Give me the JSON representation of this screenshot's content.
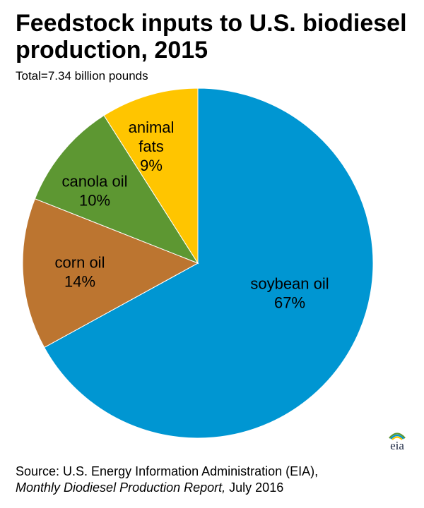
{
  "chart_data": {
    "type": "pie",
    "title": "Feedstock inputs to U.S. biodiesel production, 2015",
    "subtitle": "Total=7.34 billion pounds",
    "slices": [
      {
        "name": "soybean oil",
        "value": 67,
        "label_lines": [
          "soybean oil",
          "67%"
        ],
        "color": "#0096d2"
      },
      {
        "name": "corn oil",
        "value": 14,
        "label_lines": [
          "corn oil",
          "14%"
        ],
        "color": "#bc7530"
      },
      {
        "name": "canola oil",
        "value": 10,
        "label_lines": [
          "canola oil",
          "10%"
        ],
        "color": "#5d9732"
      },
      {
        "name": "animal fats",
        "value": 9,
        "label_lines": [
          "animal",
          "fats",
          "9%"
        ],
        "color": "#ffc500"
      }
    ],
    "start": "12 o'clock",
    "direction": "clockwise"
  },
  "logo": {
    "text": "eia",
    "arc_colors": [
      "#5d9732",
      "#0096d2",
      "#ffc500"
    ]
  },
  "source": {
    "line1": "Source: U.S. Energy Information Administration (EIA),",
    "report": "Monthly Diodiesel Production Report,",
    "date": " July 2016"
  }
}
